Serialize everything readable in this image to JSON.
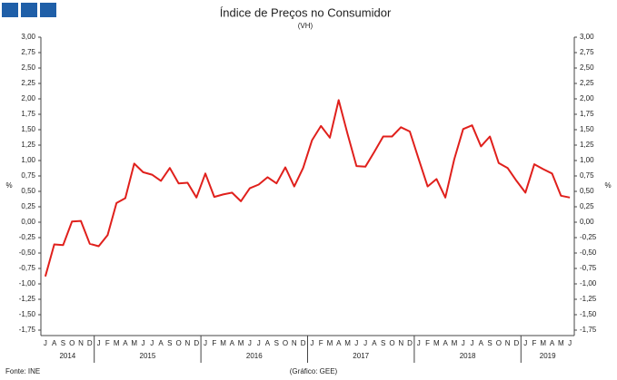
{
  "chart_data": {
    "type": "line",
    "title": "Índice de Preços no Consumidor",
    "subtitle": "(VH)",
    "source": "Fonte: INE",
    "credit": "(Gráfico: GEE)",
    "ylabel": "%",
    "y2label": "%",
    "groups": [
      {
        "label": "2014",
        "categories": [
          "J",
          "A",
          "S",
          "O",
          "N",
          "D"
        ]
      },
      {
        "label": "2015",
        "categories": [
          "J",
          "F",
          "M",
          "A",
          "M",
          "J",
          "J",
          "A",
          "S",
          "O",
          "N",
          "D"
        ]
      },
      {
        "label": "2016",
        "categories": [
          "J",
          "F",
          "M",
          "A",
          "M",
          "J",
          "J",
          "A",
          "S",
          "O",
          "N",
          "D"
        ]
      },
      {
        "label": "2017",
        "categories": [
          "J",
          "F",
          "M",
          "A",
          "M",
          "J",
          "J",
          "A",
          "S",
          "O",
          "N",
          "D"
        ]
      },
      {
        "label": "2018",
        "categories": [
          "J",
          "F",
          "M",
          "A",
          "M",
          "J",
          "J",
          "A",
          "S",
          "O",
          "N",
          "D"
        ]
      },
      {
        "label": "2019",
        "categories": [
          "J",
          "F",
          "M",
          "A",
          "M",
          "J"
        ]
      }
    ],
    "series": [
      {
        "color": "#e0201c",
        "values": [
          -0.88,
          -0.36,
          -0.37,
          0.01,
          0.02,
          -0.35,
          -0.39,
          -0.21,
          0.31,
          0.39,
          0.95,
          0.81,
          0.77,
          0.67,
          0.88,
          0.63,
          0.64,
          0.4,
          0.79,
          0.41,
          0.45,
          0.48,
          0.34,
          0.55,
          0.61,
          0.73,
          0.63,
          0.89,
          0.58,
          0.88,
          1.33,
          1.56,
          1.37,
          1.98,
          1.43,
          0.91,
          0.9,
          1.14,
          1.39,
          1.39,
          1.54,
          1.47,
          1.02,
          0.58,
          0.7,
          0.4,
          1.02,
          1.51,
          1.57,
          1.23,
          1.39,
          0.96,
          0.88,
          0.67,
          0.48,
          0.94,
          0.86,
          0.79,
          0.43,
          0.4
        ]
      }
    ],
    "ylim": [
      -1.75,
      3.0
    ],
    "yticks": [
      {
        "value": 3.0,
        "label": "3,00"
      },
      {
        "value": 2.75,
        "label": "2,75"
      },
      {
        "value": 2.5,
        "label": "2,50"
      },
      {
        "value": 2.25,
        "label": "2,25"
      },
      {
        "value": 2.0,
        "label": "2,00"
      },
      {
        "value": 1.75,
        "label": "1,75"
      },
      {
        "value": 1.5,
        "label": "1,50"
      },
      {
        "value": 1.25,
        "label": "1,25"
      },
      {
        "value": 1.0,
        "label": "1,00"
      },
      {
        "value": 0.75,
        "label": "0,75"
      },
      {
        "value": 0.5,
        "label": "0,50"
      },
      {
        "value": 0.25,
        "label": "0,25"
      },
      {
        "value": 0,
        "label": "0,00"
      },
      {
        "value": -0.25,
        "label": "-0,25"
      },
      {
        "value": -0.5,
        "label": "-0,50"
      },
      {
        "value": -0.75,
        "label": "-0,75"
      },
      {
        "value": -1.0,
        "label": "-1,00"
      },
      {
        "value": -1.25,
        "label": "-1,25"
      },
      {
        "value": -1.5,
        "label": "-1,50"
      },
      {
        "value": -1.75,
        "label": "-1,75"
      }
    ],
    "y2lim": [
      -1.75,
      3.0
    ],
    "y2ticks": [
      {
        "value": 3.0,
        "label": "3,00"
      },
      {
        "value": 2.75,
        "label": "2,75"
      },
      {
        "value": 2.5,
        "label": "2,50"
      },
      {
        "value": 2.25,
        "label": "2,25"
      },
      {
        "value": 2.0,
        "label": "2,00"
      },
      {
        "value": 1.75,
        "label": "1,75"
      },
      {
        "value": 1.5,
        "label": "1,50"
      },
      {
        "value": 1.25,
        "label": "1,25"
      },
      {
        "value": 1.0,
        "label": "1,00"
      },
      {
        "value": 0.75,
        "label": "0,75"
      },
      {
        "value": 0.5,
        "label": "0,50"
      },
      {
        "value": 0.25,
        "label": "0,25"
      },
      {
        "value": 0,
        "label": "0,00"
      },
      {
        "value": -0.25,
        "label": "-0,25"
      },
      {
        "value": -0.5,
        "label": "-0,50"
      },
      {
        "value": -0.75,
        "label": "-0,75"
      },
      {
        "value": -1.0,
        "label": "-1,00"
      },
      {
        "value": -1.25,
        "label": "-1,25"
      },
      {
        "value": -1.5,
        "label": "-1,50"
      },
      {
        "value": -1.75,
        "label": "-1,75"
      }
    ]
  }
}
